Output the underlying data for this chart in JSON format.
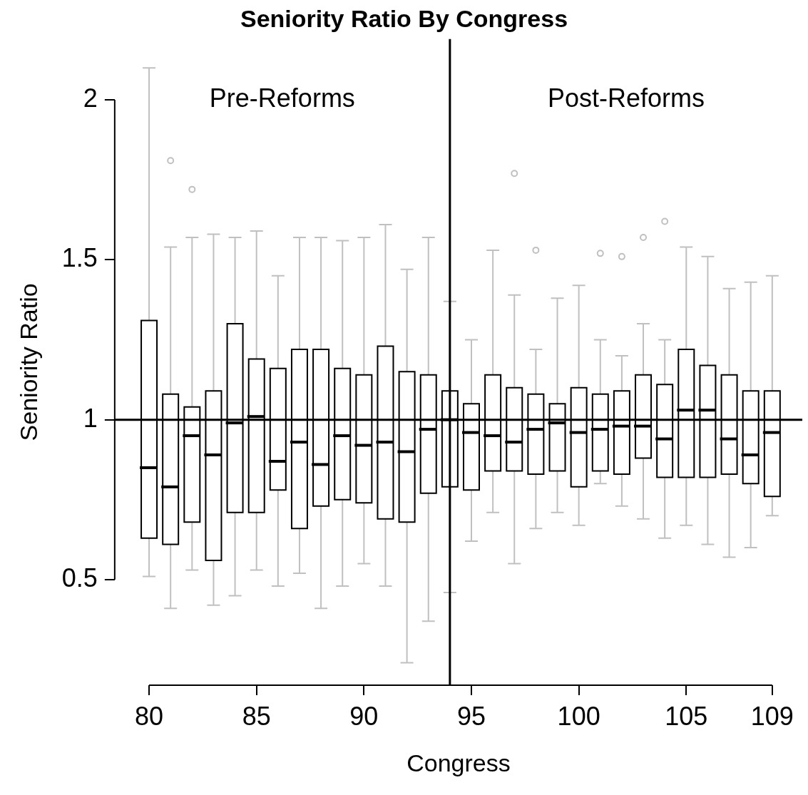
{
  "chart_data": {
    "type": "box",
    "title": "Seniority Ratio By Congress",
    "xlabel": "Congress",
    "ylabel": "Seniority Ratio",
    "x": [
      80,
      81,
      82,
      83,
      84,
      85,
      86,
      87,
      88,
      89,
      90,
      91,
      92,
      93,
      94,
      95,
      96,
      97,
      98,
      99,
      100,
      101,
      102,
      103,
      104,
      105,
      106,
      107,
      108,
      109
    ],
    "xlim": [
      78.4,
      110.4
    ],
    "xticks": [
      80,
      85,
      90,
      95,
      100,
      105,
      109
    ],
    "ylim": [
      0.17,
      2.19
    ],
    "yticks": [
      0.5,
      1,
      1.5,
      2
    ],
    "boxes": [
      {
        "low": 0.51,
        "q1": 0.63,
        "median": 0.85,
        "q3": 1.31,
        "high": 2.1
      },
      {
        "low": 0.41,
        "q1": 0.61,
        "median": 0.79,
        "q3": 1.08,
        "high": 1.54,
        "outliers": [
          1.81
        ]
      },
      {
        "low": 0.53,
        "q1": 0.68,
        "median": 0.95,
        "q3": 1.04,
        "high": 1.57,
        "outliers": [
          1.72
        ]
      },
      {
        "low": 0.42,
        "q1": 0.56,
        "median": 0.89,
        "q3": 1.09,
        "high": 1.58
      },
      {
        "low": 0.45,
        "q1": 0.71,
        "median": 0.99,
        "q3": 1.3,
        "high": 1.57
      },
      {
        "low": 0.53,
        "q1": 0.71,
        "median": 1.01,
        "q3": 1.19,
        "high": 1.59
      },
      {
        "low": 0.48,
        "q1": 0.78,
        "median": 0.87,
        "q3": 1.16,
        "high": 1.45
      },
      {
        "low": 0.52,
        "q1": 0.66,
        "median": 0.93,
        "q3": 1.22,
        "high": 1.57
      },
      {
        "low": 0.41,
        "q1": 0.73,
        "median": 0.86,
        "q3": 1.22,
        "high": 1.57
      },
      {
        "low": 0.48,
        "q1": 0.75,
        "median": 0.95,
        "q3": 1.16,
        "high": 1.56
      },
      {
        "low": 0.55,
        "q1": 0.74,
        "median": 0.92,
        "q3": 1.14,
        "high": 1.57
      },
      {
        "low": 0.48,
        "q1": 0.69,
        "median": 0.93,
        "q3": 1.23,
        "high": 1.61
      },
      {
        "low": 0.24,
        "q1": 0.68,
        "median": 0.9,
        "q3": 1.15,
        "high": 1.47
      },
      {
        "low": 0.37,
        "q1": 0.77,
        "median": 0.97,
        "q3": 1.14,
        "high": 1.57
      },
      {
        "low": 0.46,
        "q1": 0.79,
        "median": 1.0,
        "q3": 1.09,
        "high": 1.37
      },
      {
        "low": 0.62,
        "q1": 0.78,
        "median": 0.96,
        "q3": 1.05,
        "high": 1.25
      },
      {
        "low": 0.71,
        "q1": 0.84,
        "median": 0.95,
        "q3": 1.14,
        "high": 1.53
      },
      {
        "low": 0.55,
        "q1": 0.84,
        "median": 0.93,
        "q3": 1.1,
        "high": 1.39,
        "outliers": [
          1.77
        ]
      },
      {
        "low": 0.66,
        "q1": 0.83,
        "median": 0.97,
        "q3": 1.08,
        "high": 1.22,
        "outliers": [
          1.53
        ]
      },
      {
        "low": 0.71,
        "q1": 0.84,
        "median": 0.99,
        "q3": 1.05,
        "high": 1.38
      },
      {
        "low": 0.67,
        "q1": 0.79,
        "median": 0.96,
        "q3": 1.1,
        "high": 1.42
      },
      {
        "low": 0.8,
        "q1": 0.84,
        "median": 0.97,
        "q3": 1.08,
        "high": 1.25,
        "outliers": [
          1.52
        ]
      },
      {
        "low": 0.73,
        "q1": 0.83,
        "median": 0.98,
        "q3": 1.09,
        "high": 1.2,
        "outliers": [
          1.51
        ]
      },
      {
        "low": 0.69,
        "q1": 0.88,
        "median": 0.98,
        "q3": 1.14,
        "high": 1.3,
        "outliers": [
          1.57
        ]
      },
      {
        "low": 0.63,
        "q1": 0.82,
        "median": 0.94,
        "q3": 1.11,
        "high": 1.25,
        "outliers": [
          1.62
        ]
      },
      {
        "low": 0.67,
        "q1": 0.82,
        "median": 1.03,
        "q3": 1.22,
        "high": 1.54
      },
      {
        "low": 0.61,
        "q1": 0.82,
        "median": 1.03,
        "q3": 1.17,
        "high": 1.51
      },
      {
        "low": 0.57,
        "q1": 0.83,
        "median": 0.94,
        "q3": 1.14,
        "high": 1.41
      },
      {
        "low": 0.6,
        "q1": 0.8,
        "median": 0.89,
        "q3": 1.09,
        "high": 1.43
      },
      {
        "low": 0.7,
        "q1": 0.76,
        "median": 0.96,
        "q3": 1.09,
        "high": 1.45
      }
    ],
    "ref_lines": [
      {
        "axis": "y",
        "value": 1
      },
      {
        "axis": "x",
        "value": 94
      }
    ],
    "annotations": [
      "Pre-Reforms",
      "Post-Reforms"
    ],
    "grid": false,
    "legend": false
  }
}
